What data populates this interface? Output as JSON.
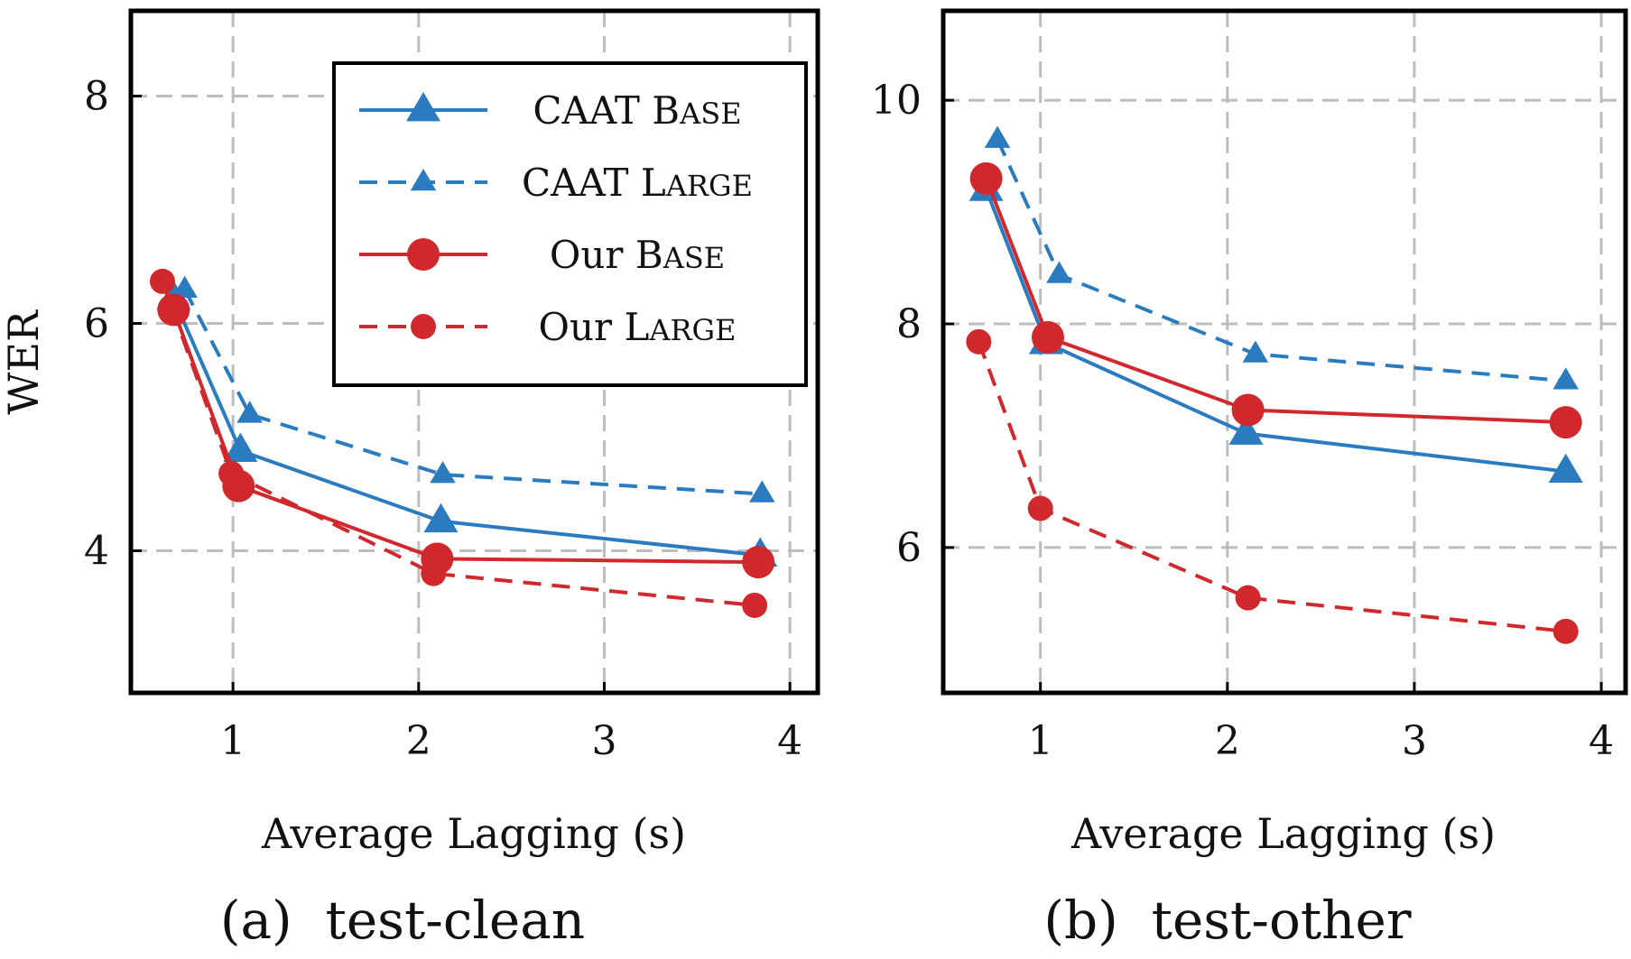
{
  "figure": {
    "ylabel": "WER",
    "colors": {
      "caat": "#2a7bbf",
      "ours": "#d1282e",
      "grid": "#bdbdbd"
    }
  },
  "legend": {
    "entries": [
      {
        "label_main": "CAAT ",
        "label_cap": "B",
        "label_small": "ASE",
        "series": "CAAT Base"
      },
      {
        "label_main": "CAAT ",
        "label_cap": "L",
        "label_small": "ARGE",
        "series": "CAAT Large"
      },
      {
        "label_main": "Our ",
        "label_cap": "B",
        "label_small": "ASE",
        "series": "Our Base"
      },
      {
        "label_main": "Our ",
        "label_cap": "L",
        "label_small": "ARGE",
        "series": "Our Large"
      }
    ]
  },
  "chart_data": [
    {
      "type": "line",
      "caption": "(a)  test-clean",
      "xlabel": "Average Lagging (s)",
      "ylabel": "WER",
      "xlim": [
        0.45,
        4.15
      ],
      "ylim": [
        2.75,
        8.75
      ],
      "xticks": [
        1,
        2,
        3,
        4
      ],
      "yticks": [
        4,
        6,
        8
      ],
      "grid": true,
      "legend_position": "top-right",
      "series": [
        {
          "name": "CAAT Base",
          "style": "solid",
          "marker": "triangle",
          "color": "#2a7bbf",
          "x": [
            0.68,
            1.04,
            2.12,
            3.84
          ],
          "y": [
            6.22,
            4.88,
            4.26,
            3.96
          ]
        },
        {
          "name": "CAAT Large",
          "style": "dashed",
          "marker": "triangle",
          "color": "#2a7bbf",
          "x": [
            0.74,
            1.09,
            2.13,
            3.85
          ],
          "y": [
            6.3,
            5.2,
            4.67,
            4.5
          ]
        },
        {
          "name": "Our Base",
          "style": "solid",
          "marker": "circle",
          "color": "#d1282e",
          "x": [
            0.68,
            1.03,
            2.1,
            3.83
          ],
          "y": [
            6.12,
            4.57,
            3.93,
            3.9
          ]
        },
        {
          "name": "Our Large",
          "style": "dashed",
          "marker": "circle",
          "color": "#d1282e",
          "x": [
            0.62,
            0.99,
            2.08,
            3.81
          ],
          "y": [
            6.37,
            4.68,
            3.8,
            3.52
          ]
        }
      ]
    },
    {
      "type": "line",
      "caption": "(b)  test-other",
      "xlabel": "Average Lagging (s)",
      "ylabel": "",
      "xlim": [
        0.48,
        4.13
      ],
      "ylim": [
        4.7,
        10.8
      ],
      "xticks": [
        1,
        2,
        3,
        4
      ],
      "yticks": [
        6,
        8,
        10
      ],
      "grid": true,
      "series": [
        {
          "name": "CAAT Base",
          "style": "solid",
          "marker": "triangle",
          "color": "#2a7bbf",
          "x": [
            0.71,
            1.03,
            2.1,
            3.81
          ],
          "y": [
            9.2,
            7.83,
            7.02,
            6.68
          ]
        },
        {
          "name": "CAAT Large",
          "style": "dashed",
          "marker": "triangle",
          "color": "#2a7bbf",
          "x": [
            0.77,
            1.1,
            2.15,
            3.81
          ],
          "y": [
            9.65,
            8.44,
            7.73,
            7.49
          ]
        },
        {
          "name": "Our Base",
          "style": "solid",
          "marker": "circle",
          "color": "#d1282e",
          "x": [
            0.71,
            1.04,
            2.11,
            3.81
          ],
          "y": [
            9.3,
            7.88,
            7.23,
            7.12
          ]
        },
        {
          "name": "Our Large",
          "style": "dashed",
          "marker": "circle",
          "color": "#d1282e",
          "x": [
            0.67,
            1.0,
            2.11,
            3.81
          ],
          "y": [
            7.84,
            6.35,
            5.55,
            5.25
          ]
        }
      ]
    }
  ]
}
